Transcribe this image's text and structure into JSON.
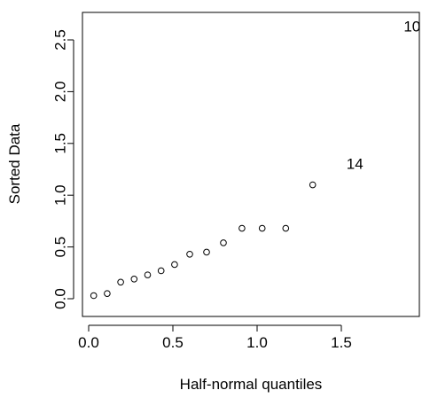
{
  "chart_data": {
    "type": "scatter",
    "title": "",
    "xlabel": "Half-normal quantiles",
    "ylabel": "Sorted Data",
    "xlim": [
      0.0,
      2.0
    ],
    "ylim": [
      0.0,
      2.6
    ],
    "xticks": [
      0.0,
      0.5,
      1.0,
      1.5
    ],
    "xtick_labels": [
      "0.0",
      "0.5",
      "1.0",
      "1.5"
    ],
    "yticks": [
      0.0,
      0.5,
      1.0,
      1.5,
      2.0,
      2.5
    ],
    "ytick_labels": [
      "0.0",
      "0.5",
      "1.0",
      "1.5",
      "2.0",
      "2.5"
    ],
    "grid": false,
    "legend": "none",
    "points": [
      {
        "x": 0.03,
        "y": 0.03
      },
      {
        "x": 0.11,
        "y": 0.05
      },
      {
        "x": 0.19,
        "y": 0.16
      },
      {
        "x": 0.27,
        "y": 0.19
      },
      {
        "x": 0.35,
        "y": 0.23
      },
      {
        "x": 0.43,
        "y": 0.27
      },
      {
        "x": 0.51,
        "y": 0.33
      },
      {
        "x": 0.6,
        "y": 0.43
      },
      {
        "x": 0.7,
        "y": 0.45
      },
      {
        "x": 0.8,
        "y": 0.54
      },
      {
        "x": 0.91,
        "y": 0.68
      },
      {
        "x": 1.03,
        "y": 0.68
      },
      {
        "x": 1.17,
        "y": 0.68
      },
      {
        "x": 1.33,
        "y": 1.1
      }
    ],
    "labeled_points": [
      {
        "label": "14",
        "x": 1.58,
        "y": 1.3
      },
      {
        "label": "10",
        "x": 1.92,
        "y": 2.63
      }
    ]
  }
}
